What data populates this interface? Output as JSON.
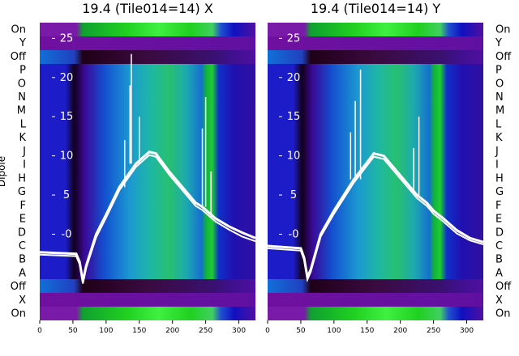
{
  "ylabel": "Dipole",
  "row_labels": [
    "On",
    "Y",
    "Off",
    "P",
    "O",
    "N",
    "M",
    "L",
    "K",
    "J",
    "I",
    "H",
    "G",
    "F",
    "E",
    "D",
    "C",
    "B",
    "A",
    "Off",
    "X",
    "On"
  ],
  "chart_data": [
    {
      "type": "heatmap",
      "title": "19.4 (Tile014=14) X",
      "x_ticks": [
        0,
        50,
        100,
        150,
        200,
        250,
        300
      ],
      "xlim": [
        0,
        325
      ],
      "y_ticks": [
        0,
        5,
        10,
        15,
        20,
        25
      ],
      "ylim": [
        -11,
        27
      ],
      "series": [
        {
          "values": [
            [
              0,
              -2.3
            ],
            [
              55,
              -2.5
            ],
            [
              60,
              -3.5
            ],
            [
              65,
              -6
            ],
            [
              70,
              -4
            ],
            [
              85,
              0
            ],
            [
              100,
              2.5
            ],
            [
              120,
              6
            ],
            [
              145,
              9
            ],
            [
              165,
              10.5
            ],
            [
              175,
              10.3
            ],
            [
              195,
              8
            ],
            [
              215,
              6
            ],
            [
              235,
              4
            ],
            [
              245,
              3.5
            ],
            [
              265,
              2
            ],
            [
              285,
              1
            ],
            [
              305,
              0.2
            ],
            [
              325,
              -0.5
            ]
          ]
        },
        {
          "values": [
            [
              0,
              -2.6
            ],
            [
              55,
              -2.8
            ],
            [
              60,
              -3.8
            ],
            [
              65,
              -6.3
            ],
            [
              70,
              -4.3
            ],
            [
              85,
              -0.4
            ],
            [
              100,
              2.1
            ],
            [
              120,
              5.6
            ],
            [
              145,
              8.6
            ],
            [
              165,
              10.1
            ],
            [
              175,
              9.9
            ],
            [
              195,
              7.6
            ],
            [
              215,
              5.6
            ],
            [
              235,
              3.6
            ],
            [
              245,
              3.1
            ],
            [
              265,
              1.6
            ],
            [
              285,
              0.6
            ],
            [
              305,
              -0.3
            ],
            [
              325,
              -0.9
            ]
          ]
        }
      ],
      "spikes_x": [
        128,
        136,
        138,
        150,
        245,
        250,
        258
      ]
    },
    {
      "type": "heatmap",
      "title": "19.4 (Tile014=14) Y",
      "x_ticks": [
        0,
        50,
        100,
        150,
        200,
        250,
        300
      ],
      "xlim": [
        0,
        325
      ],
      "y_ticks": [
        0,
        5,
        10,
        15,
        20,
        25
      ],
      "ylim": [
        -11,
        27
      ],
      "series": [
        {
          "values": [
            [
              0,
              -1.5
            ],
            [
              50,
              -1.8
            ],
            [
              55,
              -3
            ],
            [
              60,
              -5.5
            ],
            [
              65,
              -4.5
            ],
            [
              80,
              0
            ],
            [
              100,
              3
            ],
            [
              130,
              7
            ],
            [
              160,
              10.3
            ],
            [
              175,
              10
            ],
            [
              200,
              7.5
            ],
            [
              225,
              5
            ],
            [
              240,
              4
            ],
            [
              250,
              3
            ],
            [
              265,
              2
            ],
            [
              285,
              0.5
            ],
            [
              305,
              -0.5
            ],
            [
              325,
              -1
            ]
          ]
        },
        {
          "values": [
            [
              0,
              -1.8
            ],
            [
              50,
              -2.1
            ],
            [
              55,
              -3.3
            ],
            [
              60,
              -5.8
            ],
            [
              65,
              -4.8
            ],
            [
              80,
              -0.3
            ],
            [
              100,
              2.6
            ],
            [
              130,
              6.6
            ],
            [
              160,
              9.9
            ],
            [
              175,
              9.6
            ],
            [
              200,
              7.1
            ],
            [
              225,
              4.6
            ],
            [
              240,
              3.6
            ],
            [
              250,
              2.6
            ],
            [
              265,
              1.6
            ],
            [
              285,
              0.1
            ],
            [
              305,
              -0.8
            ],
            [
              325,
              -1.3
            ]
          ]
        }
      ],
      "spikes_x": [
        125,
        132,
        140,
        220,
        228
      ]
    }
  ]
}
